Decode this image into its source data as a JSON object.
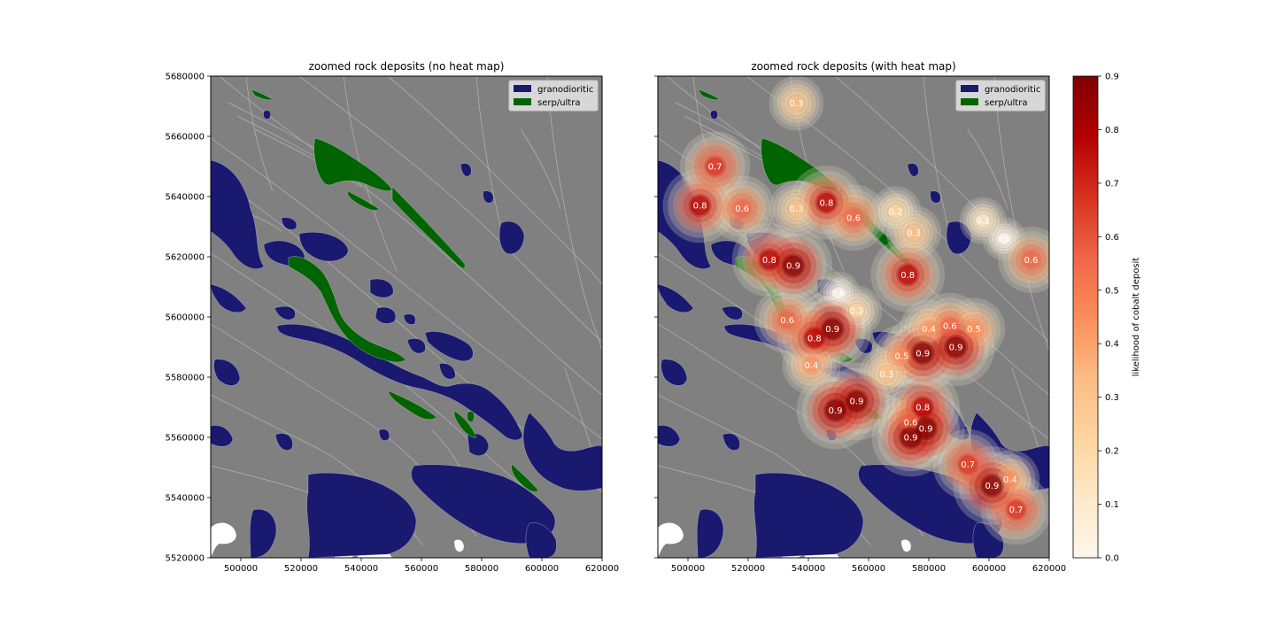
{
  "figure": {
    "colors": {
      "background_rock": "#808080",
      "granodioritic": "#191970",
      "serp_ultra": "#006400",
      "contour_lines": "#b5b5b5",
      "heat_scale": [
        "#fff7ec",
        "#fee8c8",
        "#fdd49e",
        "#fdbb84",
        "#fc8d59",
        "#ef6548",
        "#d7301f",
        "#b30000",
        "#7f0000"
      ]
    }
  },
  "panels": [
    {
      "title": "zoomed rock deposits (no heat map)",
      "show_heat": false,
      "show_ytick_labels": true
    },
    {
      "title": "zoomed rock deposits (with heat map)",
      "show_heat": true,
      "show_ytick_labels": false
    }
  ],
  "axes": {
    "x": {
      "range": [
        490000,
        620000
      ],
      "ticks": [
        500000,
        520000,
        540000,
        560000,
        580000,
        600000,
        620000
      ]
    },
    "y": {
      "range": [
        5520000,
        5680000
      ],
      "ticks": [
        5520000,
        5540000,
        5560000,
        5580000,
        5600000,
        5620000,
        5640000,
        5660000,
        5680000
      ]
    }
  },
  "legend": {
    "entries": [
      {
        "label": "granodioritic",
        "color": "#191970"
      },
      {
        "label": "serp/ultra",
        "color": "#006400"
      }
    ],
    "placement": "upper right"
  },
  "colorbar": {
    "label": "likelihood of cobalt deposit",
    "range": [
      0,
      0.9
    ],
    "ticks": [
      "0.0",
      "0.1",
      "0.2",
      "0.3",
      "0.4",
      "0.5",
      "0.6",
      "0.7",
      "0.8",
      "0.9"
    ]
  },
  "chart_data": {
    "type": "heatmap",
    "title": "zoomed rock deposits (with heat map)",
    "value_name": "likelihood of cobalt deposit",
    "hotspots": [
      {
        "x": 509000,
        "y": 5650000,
        "value": 0.7
      },
      {
        "x": 504000,
        "y": 5637000,
        "value": 0.8
      },
      {
        "x": 518000,
        "y": 5636000,
        "value": 0.6
      },
      {
        "x": 536000,
        "y": 5671000,
        "value": 0.3
      },
      {
        "x": 536000,
        "y": 5636000,
        "value": 0.3
      },
      {
        "x": 546000,
        "y": 5638000,
        "value": 0.8
      },
      {
        "x": 555000,
        "y": 5633000,
        "value": 0.6
      },
      {
        "x": 569000,
        "y": 5635000,
        "value": 0.2
      },
      {
        "x": 575000,
        "y": 5628000,
        "value": 0.3
      },
      {
        "x": 573000,
        "y": 5614000,
        "value": 0.8
      },
      {
        "x": 598000,
        "y": 5632000,
        "value": 0.1
      },
      {
        "x": 605000,
        "y": 5626000,
        "value": 0.0
      },
      {
        "x": 614000,
        "y": 5619000,
        "value": 0.6
      },
      {
        "x": 527000,
        "y": 5619000,
        "value": 0.8
      },
      {
        "x": 535000,
        "y": 5617000,
        "value": 0.9
      },
      {
        "x": 550000,
        "y": 5608000,
        "value": 0.0
      },
      {
        "x": 556000,
        "y": 5602000,
        "value": 0.2
      },
      {
        "x": 533000,
        "y": 5599000,
        "value": 0.6
      },
      {
        "x": 548000,
        "y": 5596000,
        "value": 0.9
      },
      {
        "x": 542000,
        "y": 5593000,
        "value": 0.8
      },
      {
        "x": 571000,
        "y": 5587000,
        "value": 0.5
      },
      {
        "x": 578000,
        "y": 5588000,
        "value": 0.9
      },
      {
        "x": 580000,
        "y": 5596000,
        "value": 0.4
      },
      {
        "x": 587000,
        "y": 5597000,
        "value": 0.6
      },
      {
        "x": 595000,
        "y": 5596000,
        "value": 0.5
      },
      {
        "x": 589000,
        "y": 5590000,
        "value": 0.9
      },
      {
        "x": 541000,
        "y": 5584000,
        "value": 0.4
      },
      {
        "x": 566000,
        "y": 5581000,
        "value": 0.3
      },
      {
        "x": 556000,
        "y": 5572000,
        "value": 0.9
      },
      {
        "x": 549000,
        "y": 5569000,
        "value": 0.9
      },
      {
        "x": 578000,
        "y": 5570000,
        "value": 0.8
      },
      {
        "x": 574000,
        "y": 5565000,
        "value": 0.6
      },
      {
        "x": 579000,
        "y": 5563000,
        "value": 0.9
      },
      {
        "x": 574000,
        "y": 5560000,
        "value": 0.9
      },
      {
        "x": 593000,
        "y": 5551000,
        "value": 0.7
      },
      {
        "x": 601000,
        "y": 5544000,
        "value": 0.9
      },
      {
        "x": 607000,
        "y": 5546000,
        "value": 0.4
      },
      {
        "x": 609000,
        "y": 5536000,
        "value": 0.7
      }
    ]
  }
}
